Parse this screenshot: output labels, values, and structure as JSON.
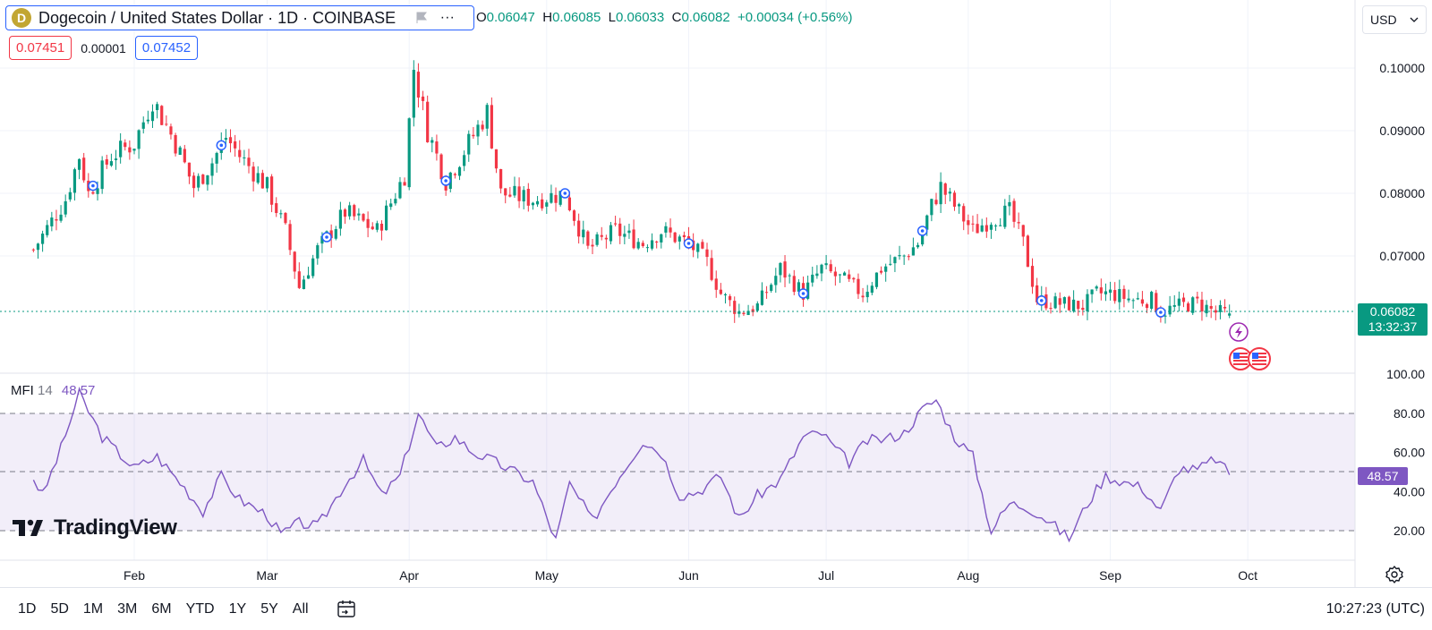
{
  "header": {
    "symbol_icon": "D",
    "symbol_title": "Dogecoin / United States Dollar · 1D · COINBASE",
    "more_label": "∙∙∙",
    "ohlc": {
      "o_label": "O",
      "o_value": "0.06047",
      "h_label": "H",
      "h_value": "0.06085",
      "l_label": "L",
      "l_value": "0.06033",
      "c_label": "C",
      "c_value": "0.06082",
      "change": "+0.00034 (+0.56%)"
    },
    "bid": "0.07451",
    "spread": "0.00001",
    "ask": "0.07452",
    "currency": "USD"
  },
  "price_axis": {
    "labels": [
      "0.10000",
      "0.09000",
      "0.08000",
      "0.07000"
    ],
    "current_price": "0.06082",
    "countdown": "13:32:37"
  },
  "mfi": {
    "name": "MFI",
    "period": "14",
    "value": "48.57",
    "axis_labels": [
      "100.00",
      "80.00",
      "60.00",
      "40.00",
      "20.00"
    ]
  },
  "time_axis": [
    "Feb",
    "Mar",
    "Apr",
    "May",
    "Jun",
    "Jul",
    "Aug",
    "Sep",
    "Oct"
  ],
  "bottom_bar": {
    "ranges": [
      "1D",
      "5D",
      "1M",
      "3M",
      "6M",
      "YTD",
      "1Y",
      "5Y",
      "All"
    ],
    "clock": "10:27:23 (UTC)"
  },
  "logo_text": "TradingView",
  "colors": {
    "up": "#089981",
    "down": "#f23645",
    "mfi": "#7e57c2",
    "accent": "#2962ff"
  },
  "chart_data": {
    "type": "candlestick",
    "symbol": "DOGEUSD",
    "interval": "1D",
    "price_range": [
      0.0555,
      0.1055
    ],
    "waypoints": [
      [
        "Jan 10",
        0.071
      ],
      [
        "Jan 17",
        0.079
      ],
      [
        "Jan 20",
        0.086
      ],
      [
        "Jan 22",
        0.08
      ],
      [
        "Jan 27",
        0.086
      ],
      [
        "Feb 01",
        0.088
      ],
      [
        "Feb 05",
        0.095
      ],
      [
        "Feb 10",
        0.088
      ],
      [
        "Feb 14",
        0.081
      ],
      [
        "Feb 18",
        0.085
      ],
      [
        "Feb 21",
        0.089
      ],
      [
        "Feb 24",
        0.086
      ],
      [
        "Mar 01",
        0.081
      ],
      [
        "Mar 05",
        0.074
      ],
      [
        "Mar 08",
        0.065
      ],
      [
        "Mar 12",
        0.071
      ],
      [
        "Mar 18",
        0.077
      ],
      [
        "Mar 25",
        0.074
      ],
      [
        "Mar 31",
        0.083
      ],
      [
        "Apr 02",
        0.1
      ],
      [
        "Apr 05",
        0.09
      ],
      [
        "Apr 09",
        0.082
      ],
      [
        "Apr 14",
        0.088
      ],
      [
        "Apr 18",
        0.093
      ],
      [
        "Apr 21",
        0.08
      ],
      [
        "Apr 28",
        0.079
      ],
      [
        "May 05",
        0.08
      ],
      [
        "May 10",
        0.071
      ],
      [
        "May 16",
        0.074
      ],
      [
        "May 22",
        0.072
      ],
      [
        "May 26",
        0.074
      ],
      [
        "Jun 01",
        0.072
      ],
      [
        "Jun 05",
        0.069
      ],
      [
        "Jun 08",
        0.064
      ],
      [
        "Jun 12",
        0.061
      ],
      [
        "Jun 16",
        0.062
      ],
      [
        "Jun 21",
        0.068
      ],
      [
        "Jun 26",
        0.064
      ],
      [
        "Jun 30",
        0.068
      ],
      [
        "Jul 05",
        0.066
      ],
      [
        "Jul 09",
        0.064
      ],
      [
        "Jul 13",
        0.068
      ],
      [
        "Jul 18",
        0.07
      ],
      [
        "Jul 21",
        0.072
      ],
      [
        "Jul 24",
        0.078
      ],
      [
        "Jul 26",
        0.081
      ],
      [
        "Jul 29",
        0.078
      ],
      [
        "Aug 02",
        0.074
      ],
      [
        "Aug 06",
        0.076
      ],
      [
        "Aug 10",
        0.077
      ],
      [
        "Aug 13",
        0.072
      ],
      [
        "Aug 16",
        0.063
      ],
      [
        "Aug 20",
        0.0625
      ],
      [
        "Aug 26",
        0.062
      ],
      [
        "Aug 29",
        0.064
      ],
      [
        "Sep 01",
        0.064
      ],
      [
        "Sep 06",
        0.063
      ],
      [
        "Sep 10",
        0.063
      ],
      [
        "Sep 12",
        0.061
      ],
      [
        "Sep 16",
        0.062
      ],
      [
        "Sep 20",
        0.0625
      ],
      [
        "Sep 24",
        0.061
      ],
      [
        "Sep 27",
        0.0608
      ]
    ],
    "last_ohlc": {
      "open": 0.06047,
      "high": 0.06085,
      "low": 0.06033,
      "close": 0.06082
    },
    "mfi_range": [
      0,
      100
    ],
    "mfi_bands": [
      20,
      50,
      80
    ],
    "mfi_waypoints": [
      [
        "Jan 10",
        47
      ],
      [
        "Jan 12",
        38
      ],
      [
        "Jan 16",
        62
      ],
      [
        "Jan 20",
        90
      ],
      [
        "Jan 25",
        68
      ],
      [
        "Feb 01",
        52
      ],
      [
        "Feb 06",
        58
      ],
      [
        "Feb 12",
        42
      ],
      [
        "Feb 16",
        30
      ],
      [
        "Feb 20",
        48
      ],
      [
        "Feb 24",
        36
      ],
      [
        "Mar 01",
        28
      ],
      [
        "Mar 04",
        18
      ],
      [
        "Mar 08",
        24
      ],
      [
        "Mar 12",
        22
      ],
      [
        "Mar 18",
        44
      ],
      [
        "Mar 22",
        56
      ],
      [
        "Mar 26",
        38
      ],
      [
        "Mar 30",
        48
      ],
      [
        "Apr 03",
        80
      ],
      [
        "Apr 07",
        62
      ],
      [
        "Apr 11",
        68
      ],
      [
        "Apr 15",
        60
      ],
      [
        "Apr 19",
        56
      ],
      [
        "Apr 24",
        50
      ],
      [
        "Apr 28",
        45
      ],
      [
        "May 03",
        15
      ],
      [
        "May 06",
        44
      ],
      [
        "May 11",
        25
      ],
      [
        "May 16",
        45
      ],
      [
        "May 22",
        66
      ],
      [
        "May 26",
        60
      ],
      [
        "May 30",
        38
      ],
      [
        "Jun 03",
        40
      ],
      [
        "Jun 08",
        48
      ],
      [
        "Jun 12",
        26
      ],
      [
        "Jun 16",
        38
      ],
      [
        "Jun 21",
        46
      ],
      [
        "Jun 26",
        68
      ],
      [
        "Jun 30",
        70
      ],
      [
        "Jul 03",
        62
      ],
      [
        "Jul 06",
        55
      ],
      [
        "Jul 10",
        66
      ],
      [
        "Jul 14",
        67
      ],
      [
        "Jul 18",
        70
      ],
      [
        "Jul 22",
        82
      ],
      [
        "Jul 25",
        87
      ],
      [
        "Jul 29",
        68
      ],
      [
        "Aug 02",
        58
      ],
      [
        "Aug 06",
        20
      ],
      [
        "Aug 10",
        34
      ],
      [
        "Aug 14",
        32
      ],
      [
        "Aug 18",
        26
      ],
      [
        "Aug 23",
        16
      ],
      [
        "Aug 27",
        34
      ],
      [
        "Aug 31",
        48
      ],
      [
        "Sep 04",
        45
      ],
      [
        "Sep 08",
        42
      ],
      [
        "Sep 12",
        30
      ],
      [
        "Sep 16",
        52
      ],
      [
        "Sep 20",
        51
      ],
      [
        "Sep 24",
        57
      ],
      [
        "Sep 27",
        48.57
      ]
    ]
  }
}
